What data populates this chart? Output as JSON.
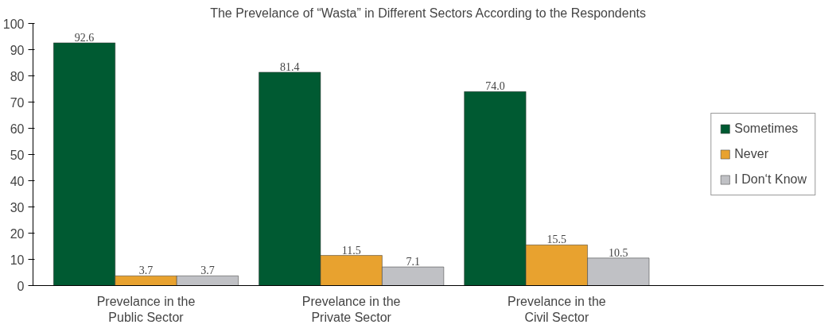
{
  "chart_data": {
    "type": "bar",
    "title": "The Prevelance of “Wasta” in Different Sectors According to the Respondents",
    "categories": [
      "Prevelance in the\nPublic Sector",
      "Prevelance in the\nPrivate Sector",
      "Prevelance in the\nCivil Sector"
    ],
    "series": [
      {
        "name": "Sometimes",
        "color": "#005a32",
        "values": [
          92.6,
          81.4,
          74.0
        ],
        "value_labels": [
          "92.6",
          "81.4",
          "74.0"
        ]
      },
      {
        "name": "Never",
        "color": "#e8a22f",
        "values": [
          3.7,
          11.5,
          15.5
        ],
        "value_labels": [
          "3.7",
          "11.5",
          "15.5"
        ]
      },
      {
        "name": "I Don‘t Know",
        "color": "#c0c1c5",
        "values": [
          3.7,
          7.1,
          10.5
        ],
        "value_labels": [
          "3.7",
          "7.1",
          "10.5"
        ]
      }
    ],
    "ylim": [
      0,
      100
    ],
    "yticks": [
      0,
      10,
      20,
      30,
      40,
      50,
      60,
      70,
      80,
      90,
      100
    ],
    "legend": "right",
    "grid": false
  }
}
